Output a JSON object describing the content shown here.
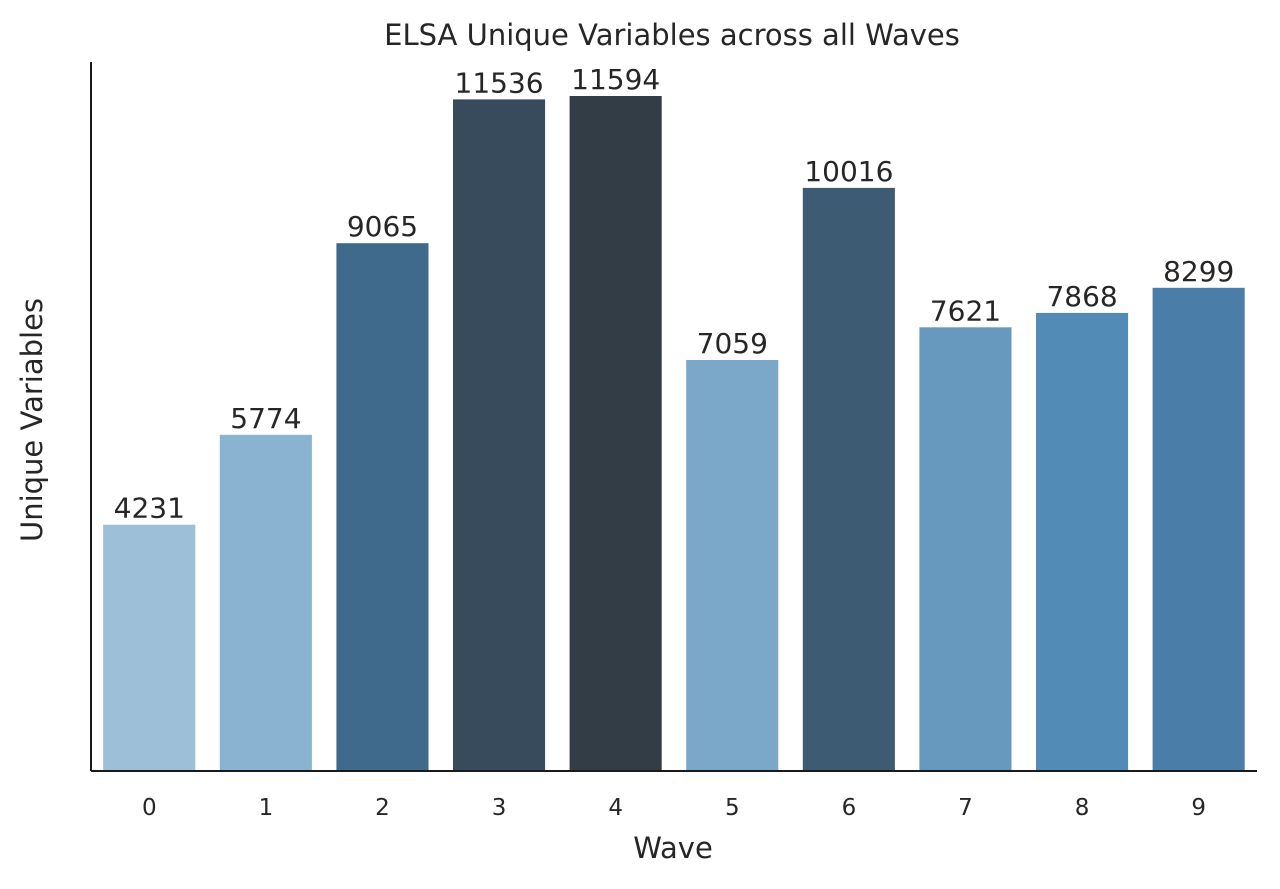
{
  "chart_data": {
    "type": "bar",
    "title": "ELSA Unique Variables across all Waves",
    "xlabel": "Wave",
    "ylabel": "Unique Variables",
    "categories": [
      "0",
      "1",
      "2",
      "3",
      "4",
      "5",
      "6",
      "7",
      "8",
      "9"
    ],
    "values": [
      4231,
      5774,
      9065,
      11536,
      11594,
      7059,
      10016,
      7621,
      7868,
      8299
    ],
    "colors": [
      "#9dc0d8",
      "#89b3d1",
      "#3f6a8b",
      "#384b5c",
      "#333d45",
      "#7ba7c8",
      "#3d5b73",
      "#6799bf",
      "#528bb6",
      "#4a7ea8"
    ],
    "ylim": [
      0,
      11594
    ],
    "y_ticks_shown": false,
    "grid": false,
    "legend": "none"
  }
}
